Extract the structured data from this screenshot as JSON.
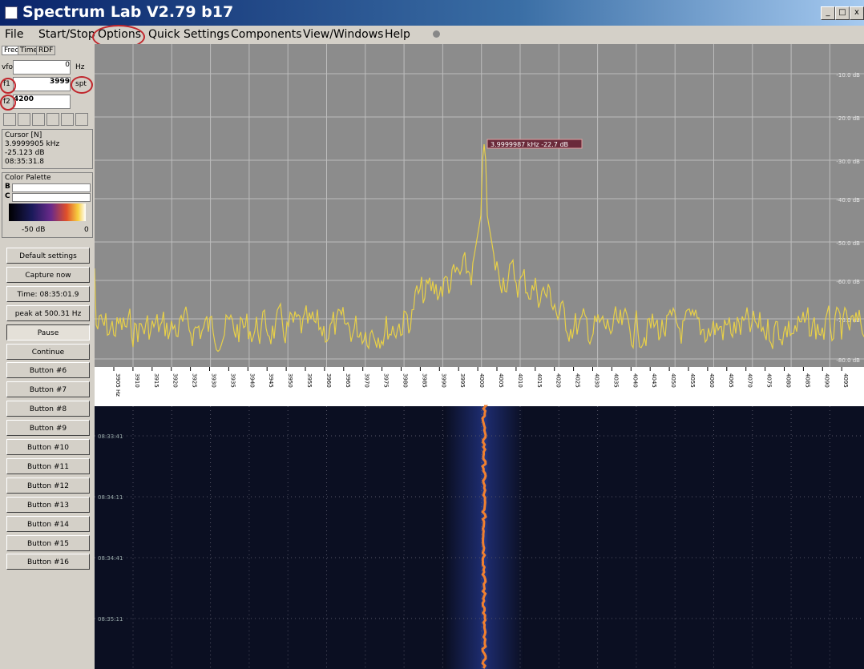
{
  "window": {
    "title": "Spectrum Lab V2.79 b17"
  },
  "menu": [
    "File",
    "Start/Stop",
    "Options",
    "Quick Settings",
    "Components",
    "View/Windows",
    "Help"
  ],
  "tabs": [
    "Freq",
    "Time",
    "RDF"
  ],
  "fields": {
    "vfo_label": "vfo",
    "vfo_value": "0",
    "vfo_unit": "Hz",
    "f1_label": "f1",
    "f1_value": "3999",
    "f1_unit": "spt",
    "f2_label": "f2",
    "f2_value": "4200"
  },
  "cursor": {
    "title": "Cursor [N]",
    "freq": "3.9999905 kHz",
    "level": "-25.123 dB",
    "time": "08:35:31.8"
  },
  "palette": {
    "title": "Color Palette",
    "b": "B",
    "c": "C",
    "min": "-50 dB",
    "max": "0"
  },
  "buttons": [
    "Default settings",
    "Capture now",
    "Time: 08:35:01.9",
    "peak at 500.31 Hz",
    "Pause",
    "Continue",
    "Button #6",
    "Button #7",
    "Button #8",
    "Button #9",
    "Button #10",
    "Button #11",
    "Button #12",
    "Button #13",
    "Button #14",
    "Button #15",
    "Button #16"
  ],
  "spectrum": {
    "peak_label": "3.9999987 kHz  -22.7 dB",
    "db_labels": [
      "-10.0 dB",
      "-20.0 dB",
      "-30.0 dB",
      "-40.0 dB",
      "-50.0 dB",
      "-60.0 dB",
      "-70.0 dB",
      "-80.0 dB"
    ],
    "freq_labels": [
      "3905 Hz",
      "3910",
      "3915",
      "3920",
      "3925",
      "3930",
      "3935",
      "3940",
      "3945",
      "3950",
      "3955",
      "3960",
      "3965",
      "3970",
      "3975",
      "3980",
      "3985",
      "3990",
      "3995",
      "4000",
      "4005",
      "4010",
      "4015",
      "4020",
      "4025",
      "4030",
      "4035",
      "4040",
      "4045",
      "4050",
      "4055",
      "4060",
      "4065",
      "4070",
      "4075",
      "4080",
      "4085",
      "4090",
      "4095"
    ]
  },
  "waterfall": {
    "time_labels": [
      "08:33:41",
      "08:34:11",
      "08:34:41",
      "08:35:11"
    ]
  }
}
